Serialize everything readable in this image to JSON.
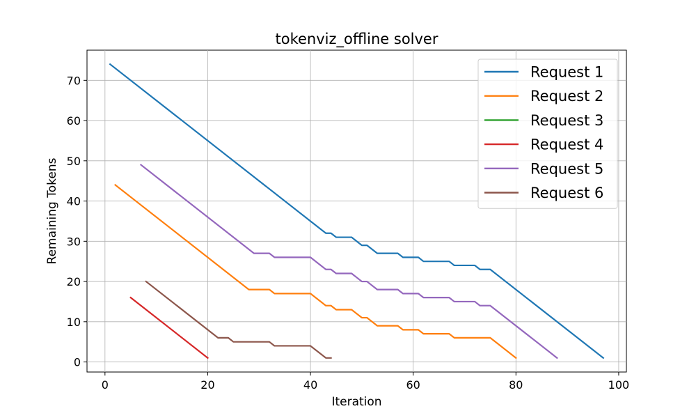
{
  "chart_data": {
    "type": "line",
    "title": "tokenviz_offline solver",
    "xlabel": "Iteration",
    "ylabel": "Remaining Tokens",
    "xlim": [
      -3.5,
      101.5
    ],
    "ylim": [
      -2.5,
      77.5
    ],
    "xticks": [
      0,
      20,
      40,
      60,
      80,
      100
    ],
    "yticks": [
      0,
      10,
      20,
      30,
      40,
      50,
      60,
      70
    ],
    "grid": true,
    "legend_position": "top-right",
    "series": [
      {
        "name": "Request 1",
        "color": "#1f77b4",
        "points": [
          [
            1,
            74
          ],
          [
            42,
            33
          ],
          [
            43,
            32
          ],
          [
            44,
            32
          ],
          [
            45,
            31
          ],
          [
            48,
            31
          ],
          [
            50,
            29
          ],
          [
            51,
            29
          ],
          [
            53,
            27
          ],
          [
            57,
            27
          ],
          [
            58,
            26
          ],
          [
            61,
            26
          ],
          [
            62,
            25
          ],
          [
            67,
            25
          ],
          [
            68,
            24
          ],
          [
            72,
            24
          ],
          [
            73,
            23
          ],
          [
            75,
            23
          ],
          [
            97,
            1
          ]
        ]
      },
      {
        "name": "Request 2",
        "color": "#ff7f0e",
        "points": [
          [
            2,
            44
          ],
          [
            28,
            18
          ],
          [
            32,
            18
          ],
          [
            33,
            17
          ],
          [
            40,
            17
          ],
          [
            43,
            14
          ],
          [
            44,
            14
          ],
          [
            45,
            13
          ],
          [
            48,
            13
          ],
          [
            50,
            11
          ],
          [
            51,
            11
          ],
          [
            53,
            9
          ],
          [
            57,
            9
          ],
          [
            58,
            8
          ],
          [
            61,
            8
          ],
          [
            62,
            7
          ],
          [
            67,
            7
          ],
          [
            68,
            6
          ],
          [
            75,
            6
          ],
          [
            80,
            1
          ]
        ]
      },
      {
        "name": "Request 3",
        "color": "#2ca02c",
        "points": []
      },
      {
        "name": "Request 4",
        "color": "#d62728",
        "points": [
          [
            5,
            16
          ],
          [
            20,
            1
          ]
        ]
      },
      {
        "name": "Request 5",
        "color": "#9467bd",
        "points": [
          [
            7,
            49
          ],
          [
            29,
            27
          ],
          [
            32,
            27
          ],
          [
            33,
            26
          ],
          [
            40,
            26
          ],
          [
            43,
            23
          ],
          [
            44,
            23
          ],
          [
            45,
            22
          ],
          [
            48,
            22
          ],
          [
            50,
            20
          ],
          [
            51,
            20
          ],
          [
            53,
            18
          ],
          [
            57,
            18
          ],
          [
            58,
            17
          ],
          [
            61,
            17
          ],
          [
            62,
            16
          ],
          [
            67,
            16
          ],
          [
            68,
            15
          ],
          [
            72,
            15
          ],
          [
            73,
            14
          ],
          [
            75,
            14
          ],
          [
            88,
            1
          ]
        ]
      },
      {
        "name": "Request 6",
        "color": "#8c564b",
        "points": [
          [
            8,
            20
          ],
          [
            22,
            6
          ],
          [
            24,
            6
          ],
          [
            25,
            5
          ],
          [
            32,
            5
          ],
          [
            33,
            4
          ],
          [
            40,
            4
          ],
          [
            43,
            1
          ],
          [
            44,
            1
          ]
        ]
      }
    ]
  }
}
